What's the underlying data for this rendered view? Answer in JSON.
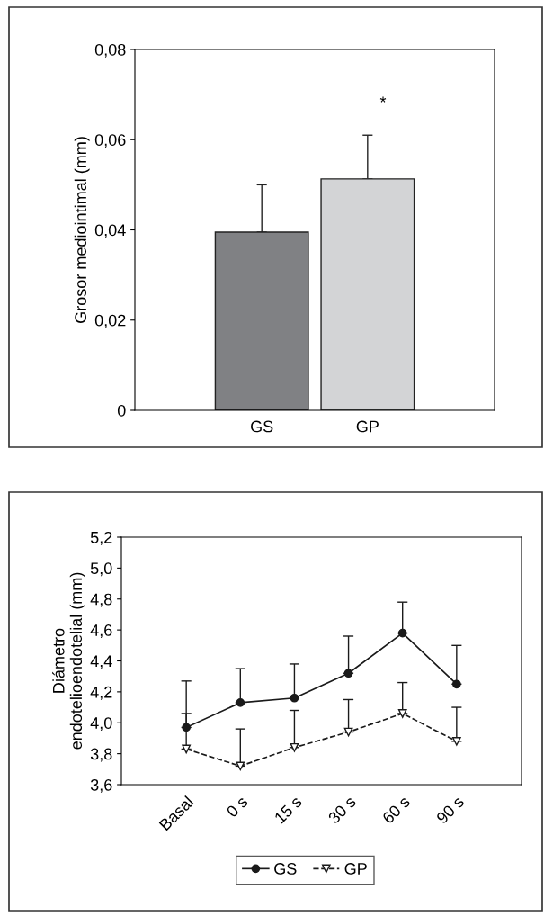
{
  "chart_data": [
    {
      "type": "bar",
      "ylabel": "Grosor mediointimal (mm)",
      "categories": [
        "GS",
        "GP"
      ],
      "values": [
        0.0395,
        0.0513
      ],
      "colors": [
        "#808184",
        "#d3d4d6"
      ],
      "errors": [
        [
          0.0395,
          0.05
        ],
        [
          0.0513,
          0.061
        ]
      ],
      "ylim": [
        0,
        0.08
      ],
      "yticks": [
        0,
        {
          "value": 0.02,
          "label": "0,02"
        },
        {
          "value": 0.04,
          "label": "0,04"
        },
        {
          "value": 0.06,
          "label": "0,06"
        },
        {
          "value": 0.08,
          "label": "0,08"
        }
      ],
      "annotations": [
        "*"
      ],
      "grid": false,
      "legend": false
    },
    {
      "type": "line",
      "ylabel": "Diámetro\nendotelioendotelial (mm)",
      "categories": [
        "Basal",
        "0 s",
        "15 s",
        "30 s",
        "60 s",
        "90 s"
      ],
      "series": [
        {
          "name": "GS",
          "color": "#1a1a1a",
          "marker": "circle",
          "line_style": "solid",
          "values": [
            3.97,
            4.13,
            4.16,
            4.32,
            4.58,
            4.25
          ],
          "errors": [
            [
              3.97,
              4.27
            ],
            [
              4.13,
              4.35
            ],
            [
              4.16,
              4.38
            ],
            [
              4.32,
              4.56
            ],
            [
              4.58,
              4.78
            ],
            [
              4.25,
              4.5
            ]
          ]
        },
        {
          "name": "GP",
          "color": "#1a1a1a",
          "marker": "triangle",
          "line_style": "dashed",
          "values": [
            3.83,
            3.72,
            3.84,
            3.94,
            4.06,
            3.88
          ],
          "errors": [
            [
              3.83,
              4.06
            ],
            [
              3.72,
              3.96
            ],
            [
              3.84,
              4.08
            ],
            [
              3.94,
              4.15
            ],
            [
              4.06,
              4.26
            ],
            [
              3.88,
              4.1
            ]
          ]
        }
      ],
      "ylim": [
        3.6,
        5.2
      ],
      "yticks": [
        {
          "value": 3.6,
          "label": "3,6"
        },
        {
          "value": 3.8,
          "label": "3,8"
        },
        {
          "value": 4.0,
          "label": "4,0"
        },
        {
          "value": 4.2,
          "label": "4,2"
        },
        {
          "value": 4.4,
          "label": "4,4"
        },
        {
          "value": 4.6,
          "label": "4,6"
        },
        {
          "value": 4.8,
          "label": "4,8"
        },
        {
          "value": 5.0,
          "label": "5,0"
        },
        {
          "value": 5.2,
          "label": "5,2"
        }
      ],
      "grid": false,
      "legend": "bottom"
    }
  ]
}
